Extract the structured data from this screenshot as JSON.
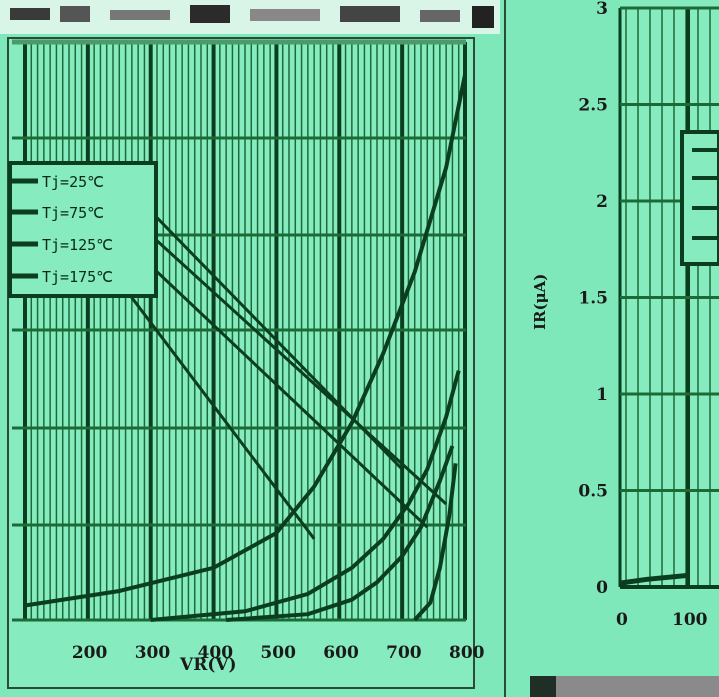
{
  "chart_data": [
    {
      "type": "line",
      "title": "",
      "xlabel": "VR(V)",
      "ylabel": "",
      "xlim": [
        100,
        800
      ],
      "xticks": [
        200,
        300,
        400,
        500,
        600,
        700,
        800
      ],
      "grid": true,
      "legend_position": "top-left",
      "series": [
        {
          "name": "Tj=25℃",
          "x": [
            720,
            745,
            760,
            775,
            785
          ],
          "y": [
            0.0,
            0.3,
            0.9,
            1.8,
            2.7
          ]
        },
        {
          "name": "Tj=75℃",
          "x": [
            420,
            550,
            620,
            660,
            700,
            730,
            760,
            780
          ],
          "y": [
            0.0,
            0.1,
            0.35,
            0.65,
            1.1,
            1.6,
            2.4,
            3.0
          ]
        },
        {
          "name": "Tj=125℃",
          "x": [
            300,
            450,
            550,
            620,
            670,
            710,
            740,
            770,
            790
          ],
          "y": [
            0.0,
            0.15,
            0.45,
            0.9,
            1.4,
            2.0,
            2.6,
            3.5,
            4.3
          ]
        },
        {
          "name": "Tj=175℃",
          "x": [
            100,
            250,
            400,
            500,
            560,
            620,
            670,
            720,
            770,
            800
          ],
          "y": [
            0.25,
            0.5,
            0.9,
            1.5,
            2.3,
            3.4,
            4.6,
            6.0,
            7.8,
            9.4
          ]
        }
      ]
    },
    {
      "type": "line",
      "title": "",
      "xlabel": "",
      "ylabel": "IR(μA)",
      "xlim": [
        0,
        100
      ],
      "ylim": [
        0,
        3
      ],
      "xticks": [
        0,
        100
      ],
      "yticks": [
        0,
        0.5,
        1,
        1.5,
        2,
        2.5,
        3
      ],
      "ytick_labels": [
        "0",
        "0.5",
        "1",
        "1.5",
        "2",
        "2.5",
        "3"
      ],
      "xtick_labels": [
        "0",
        "100"
      ],
      "grid": true,
      "series": [
        {
          "x": [
            0,
            40,
            100
          ],
          "y": [
            0.02,
            0.04,
            0.06
          ]
        }
      ]
    }
  ],
  "colors": {
    "background": "#7fe8bb",
    "grid": "#1c6b37",
    "line": "#0b3d1f",
    "frame": "#333333"
  },
  "left_chart_tick_labels": [
    "200",
    "300",
    "400",
    "500",
    "600",
    "700",
    "800"
  ],
  "left_chart_xlabel": "VR(V)"
}
